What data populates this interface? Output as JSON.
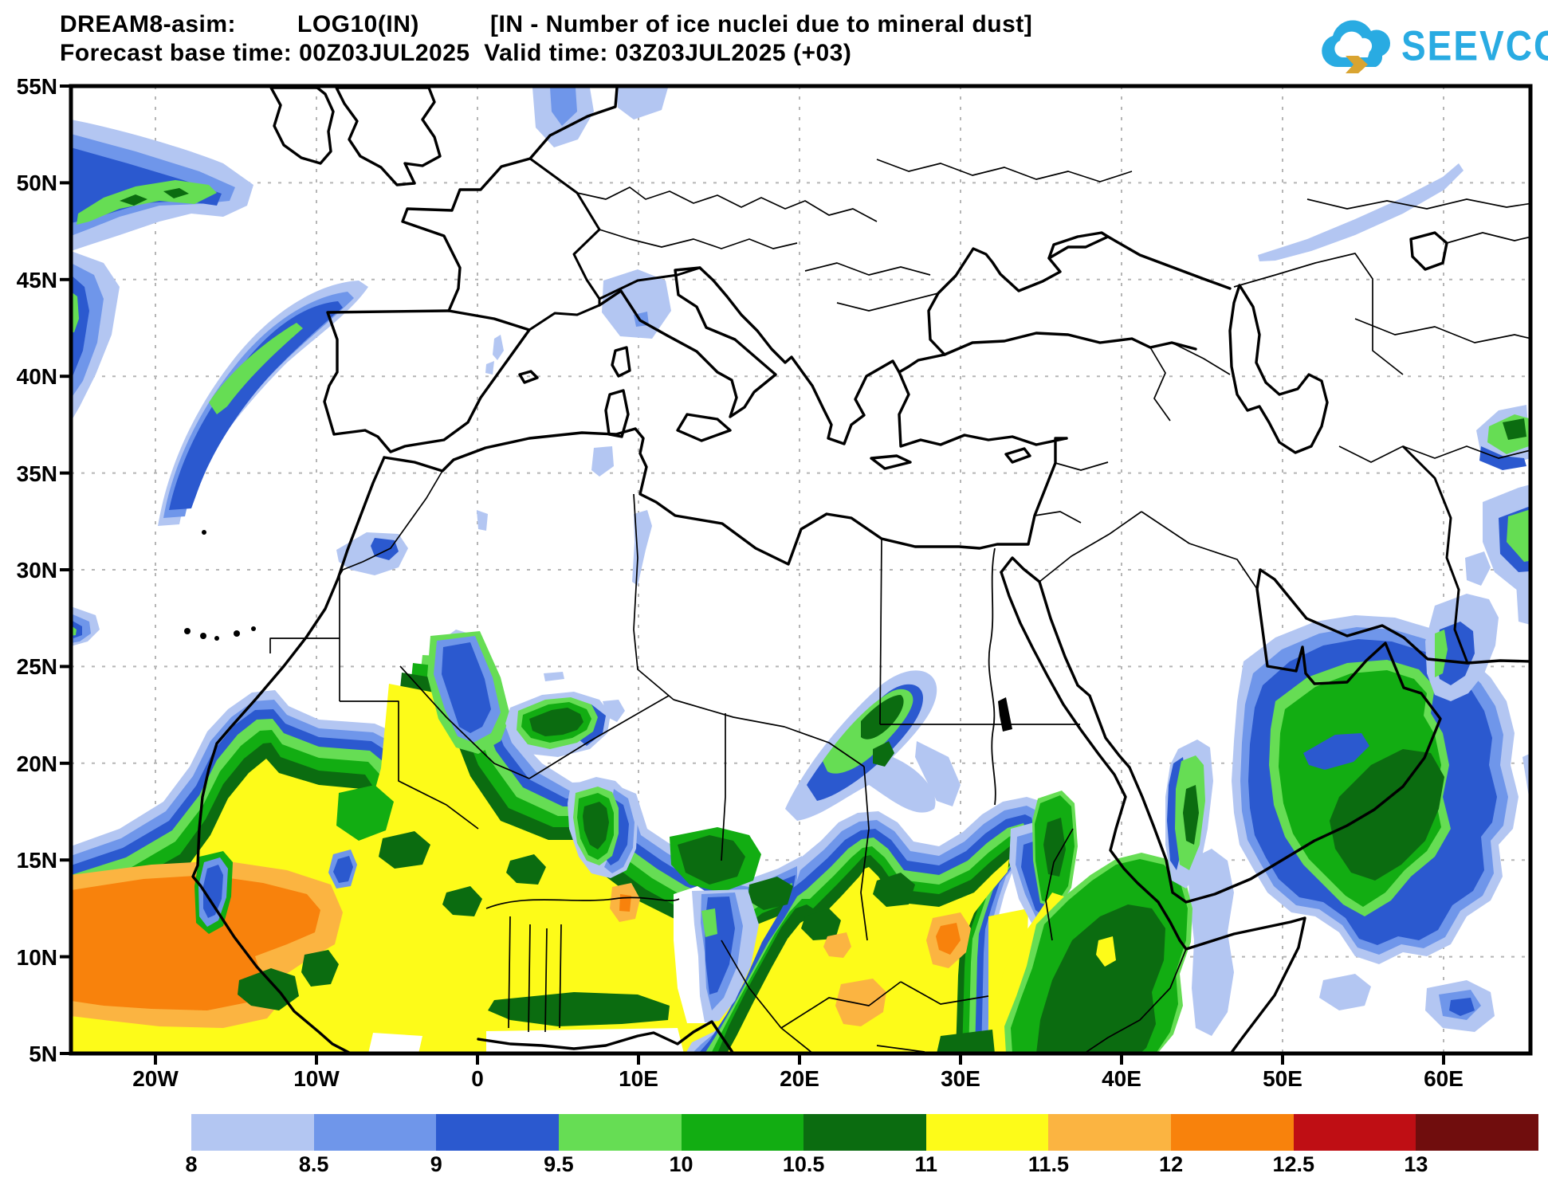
{
  "header": {
    "model": "DREAM8-asim:",
    "variable": "LOG10(IN)",
    "description": "[IN - Number of ice nuclei due to mineral dust]",
    "line2": "Forecast base time: 00Z03JUL2025  Valid time: 03Z03JUL2025 (+03)",
    "logo_text": "SEEVCCC",
    "logo_color": "#29abe2",
    "logo_arrow_color": "#d9a431"
  },
  "map": {
    "lat_ticks": [
      {
        "label": "55N",
        "lat": 55
      },
      {
        "label": "50N",
        "lat": 50
      },
      {
        "label": "45N",
        "lat": 45
      },
      {
        "label": "40N",
        "lat": 40
      },
      {
        "label": "35N",
        "lat": 35
      },
      {
        "label": "30N",
        "lat": 30
      },
      {
        "label": "25N",
        "lat": 25
      },
      {
        "label": "20N",
        "lat": 20
      },
      {
        "label": "15N",
        "lat": 15
      },
      {
        "label": "10N",
        "lat": 10
      },
      {
        "label": "5N",
        "lat": 5
      }
    ],
    "lon_ticks": [
      {
        "label": "20W",
        "lon": -20
      },
      {
        "label": "10W",
        "lon": -10
      },
      {
        "label": "0",
        "lon": 0
      },
      {
        "label": "10E",
        "lon": 10
      },
      {
        "label": "20E",
        "lon": 20
      },
      {
        "label": "30E",
        "lon": 30
      },
      {
        "label": "40E",
        "lon": 40
      },
      {
        "label": "50E",
        "lon": 50
      },
      {
        "label": "60E",
        "lon": 60
      }
    ],
    "grid_lats": [
      50,
      45,
      40,
      35,
      30,
      25,
      20,
      15,
      10
    ],
    "grid_lons": [
      -20,
      -10,
      0,
      10,
      20,
      30,
      40,
      50,
      60
    ]
  },
  "colorbar": {
    "labels": [
      "8",
      "8.5",
      "9",
      "9.5",
      "10",
      "10.5",
      "11",
      "11.5",
      "12",
      "12.5",
      "13"
    ],
    "colors": [
      "#b3c6f2",
      "#6f96ea",
      "#2b59cf",
      "#66dd54",
      "#12ad12",
      "#0b6c10",
      "#fdfb19",
      "#fbb441",
      "#f8820c",
      "#bf0e14",
      "#700d0d"
    ]
  },
  "chart_data": {
    "type": "heatmap",
    "title": "DREAM8-asim: LOG10(IN) [IN - Number of ice nuclei due to mineral dust]",
    "variable": "LOG10(IN)",
    "forecast_base_time": "00Z03JUL2025",
    "valid_time": "03Z03JUL2025",
    "lead_hours": "+03",
    "projection": "cylindrical lat-lon",
    "lon_range": [
      -25.3,
      65.4
    ],
    "lat_range": [
      5,
      55
    ],
    "grid": "dashed, 5 deg lat x 10 deg lon",
    "legend_position": "bottom",
    "contour_levels": [
      8,
      8.5,
      9,
      9.5,
      10,
      10.5,
      11,
      11.5,
      12,
      12.5,
      13
    ],
    "contour_colors": [
      "#b3c6f2",
      "#6f96ea",
      "#2b59cf",
      "#66dd54",
      "#12ad12",
      "#0b6c10",
      "#fdfb19",
      "#fbb441",
      "#f8820c",
      "#bf0e14",
      "#700d0d"
    ],
    "features": [
      {
        "name": "atlantic-streak-nw",
        "desc": "elongated band SW of Ireland, values 8-10.5, green core",
        "lon": [
          -25,
          -13
        ],
        "lat": [
          46,
          54
        ]
      },
      {
        "name": "biscay-portugal-streak",
        "desc": "narrow arc offshore Iberia, 8-10, green sliver",
        "lon": [
          -21,
          -7
        ],
        "lat": [
          32,
          45
        ]
      },
      {
        "name": "po-valley-patch",
        "desc": "light blue 8-8.5 over N Italy",
        "lon": [
          7.5,
          11.5
        ],
        "lat": [
          43.5,
          46
        ]
      },
      {
        "name": "north-sea-patch",
        "desc": "small 8-9 patch near Netherlands/Denmark, cut by top edge",
        "lon": [
          3.5,
          11
        ],
        "lat": [
          52,
          55
        ]
      },
      {
        "name": "atlas-patch",
        "desc": "small 8-9 spots over Morocco Atlas",
        "lon": [
          -9,
          -4.5
        ],
        "lat": [
          29.5,
          32
        ]
      },
      {
        "name": "saharan-sahel-plume",
        "desc": "huge dust plume 8-12.5 from Atlantic coast to ~42E, orange core 12-12.5 over Senegal/Guinea/Mali, yellow 11-11.5 across Sahel, dark green rim",
        "lon": [
          -25,
          42
        ],
        "lat": [
          5,
          27
        ]
      },
      {
        "name": "libya-egypt-arm",
        "desc": "diagonal blue/green arm crossing 25E border",
        "lon": [
          19,
          29
        ],
        "lat": [
          17,
          25
        ]
      },
      {
        "name": "sudan-eritrea-columns",
        "desc": "green columns with blue pockets near 33-36E",
        "lon": [
          33,
          37
        ],
        "lat": [
          11,
          18
        ]
      },
      {
        "name": "ethiopia-mass",
        "desc": "large green mass with dark core 10.5-11",
        "lon": [
          35,
          45
        ],
        "lat": [
          5,
          15
        ]
      },
      {
        "name": "yemen-strip",
        "desc": "vertical green strip with dark core ~44.5E",
        "lon": [
          43.5,
          45.5
        ],
        "lat": [
          13,
          19
        ]
      },
      {
        "name": "arabian-sea-blob",
        "desc": "large green blob, dark green core 10.5-11, blue rims, over Arabian Sea / Gulf of Aden",
        "lon": [
          47,
          64
        ],
        "lat": [
          6,
          25
        ]
      },
      {
        "name": "ne-steppe-streak",
        "desc": "thin light blue diagonal streak",
        "lon": [
          47,
          62
        ],
        "lat": [
          47,
          52
        ]
      },
      {
        "name": "east-edge-patches",
        "desc": "green/blue patches at right edge ~36-38N and ~30-33N",
        "lon": [
          62,
          65.4
        ],
        "lat": [
          30,
          38
        ]
      }
    ]
  }
}
